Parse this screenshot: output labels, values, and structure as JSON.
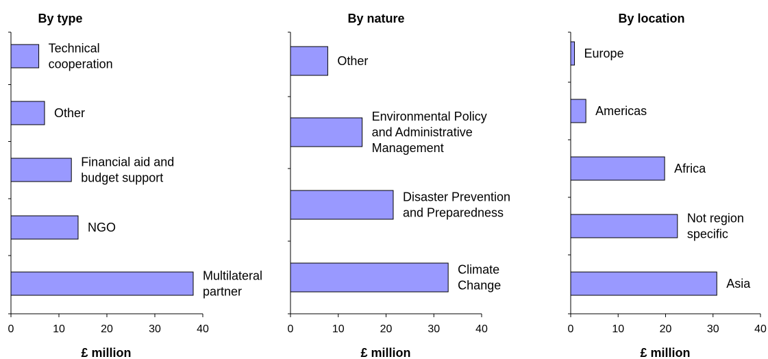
{
  "chart_data": [
    {
      "type": "bar",
      "orientation": "horizontal",
      "title": "By type",
      "xlabel": "£ million",
      "xlim": [
        0,
        40
      ],
      "xticks": [
        0,
        10,
        20,
        30,
        40
      ],
      "bar_color": "#9999ff",
      "categories": [
        [
          "Technical",
          "cooperation"
        ],
        [
          "Other"
        ],
        [
          "Financial aid and",
          "budget support"
        ],
        [
          "NGO"
        ],
        [
          "Multilateral",
          "partner"
        ]
      ],
      "values": [
        5.8,
        7,
        12.6,
        14,
        38
      ]
    },
    {
      "type": "bar",
      "orientation": "horizontal",
      "title": "By nature",
      "xlabel": "£ million",
      "xlim": [
        0,
        40
      ],
      "xticks": [
        0,
        10,
        20,
        30,
        40
      ],
      "bar_color": "#9999ff",
      "categories": [
        [
          "Other"
        ],
        [
          "Environmental Policy",
          "and Administrative",
          "Management"
        ],
        [
          "Disaster Prevention",
          "and Preparedness"
        ],
        [
          "Climate",
          "Change"
        ]
      ],
      "values": [
        7.8,
        15,
        21.5,
        33
      ]
    },
    {
      "type": "bar",
      "orientation": "horizontal",
      "title": "By location",
      "xlabel": "£ million",
      "xlim": [
        0,
        40
      ],
      "xticks": [
        0,
        10,
        20,
        30,
        40
      ],
      "bar_color": "#9999ff",
      "categories": [
        [
          "Europe"
        ],
        [
          "Americas"
        ],
        [
          "Africa"
        ],
        [
          "Not region",
          "specific"
        ],
        [
          "Asia"
        ]
      ],
      "values": [
        0.8,
        3.2,
        19.8,
        22.5,
        30.8
      ]
    }
  ]
}
